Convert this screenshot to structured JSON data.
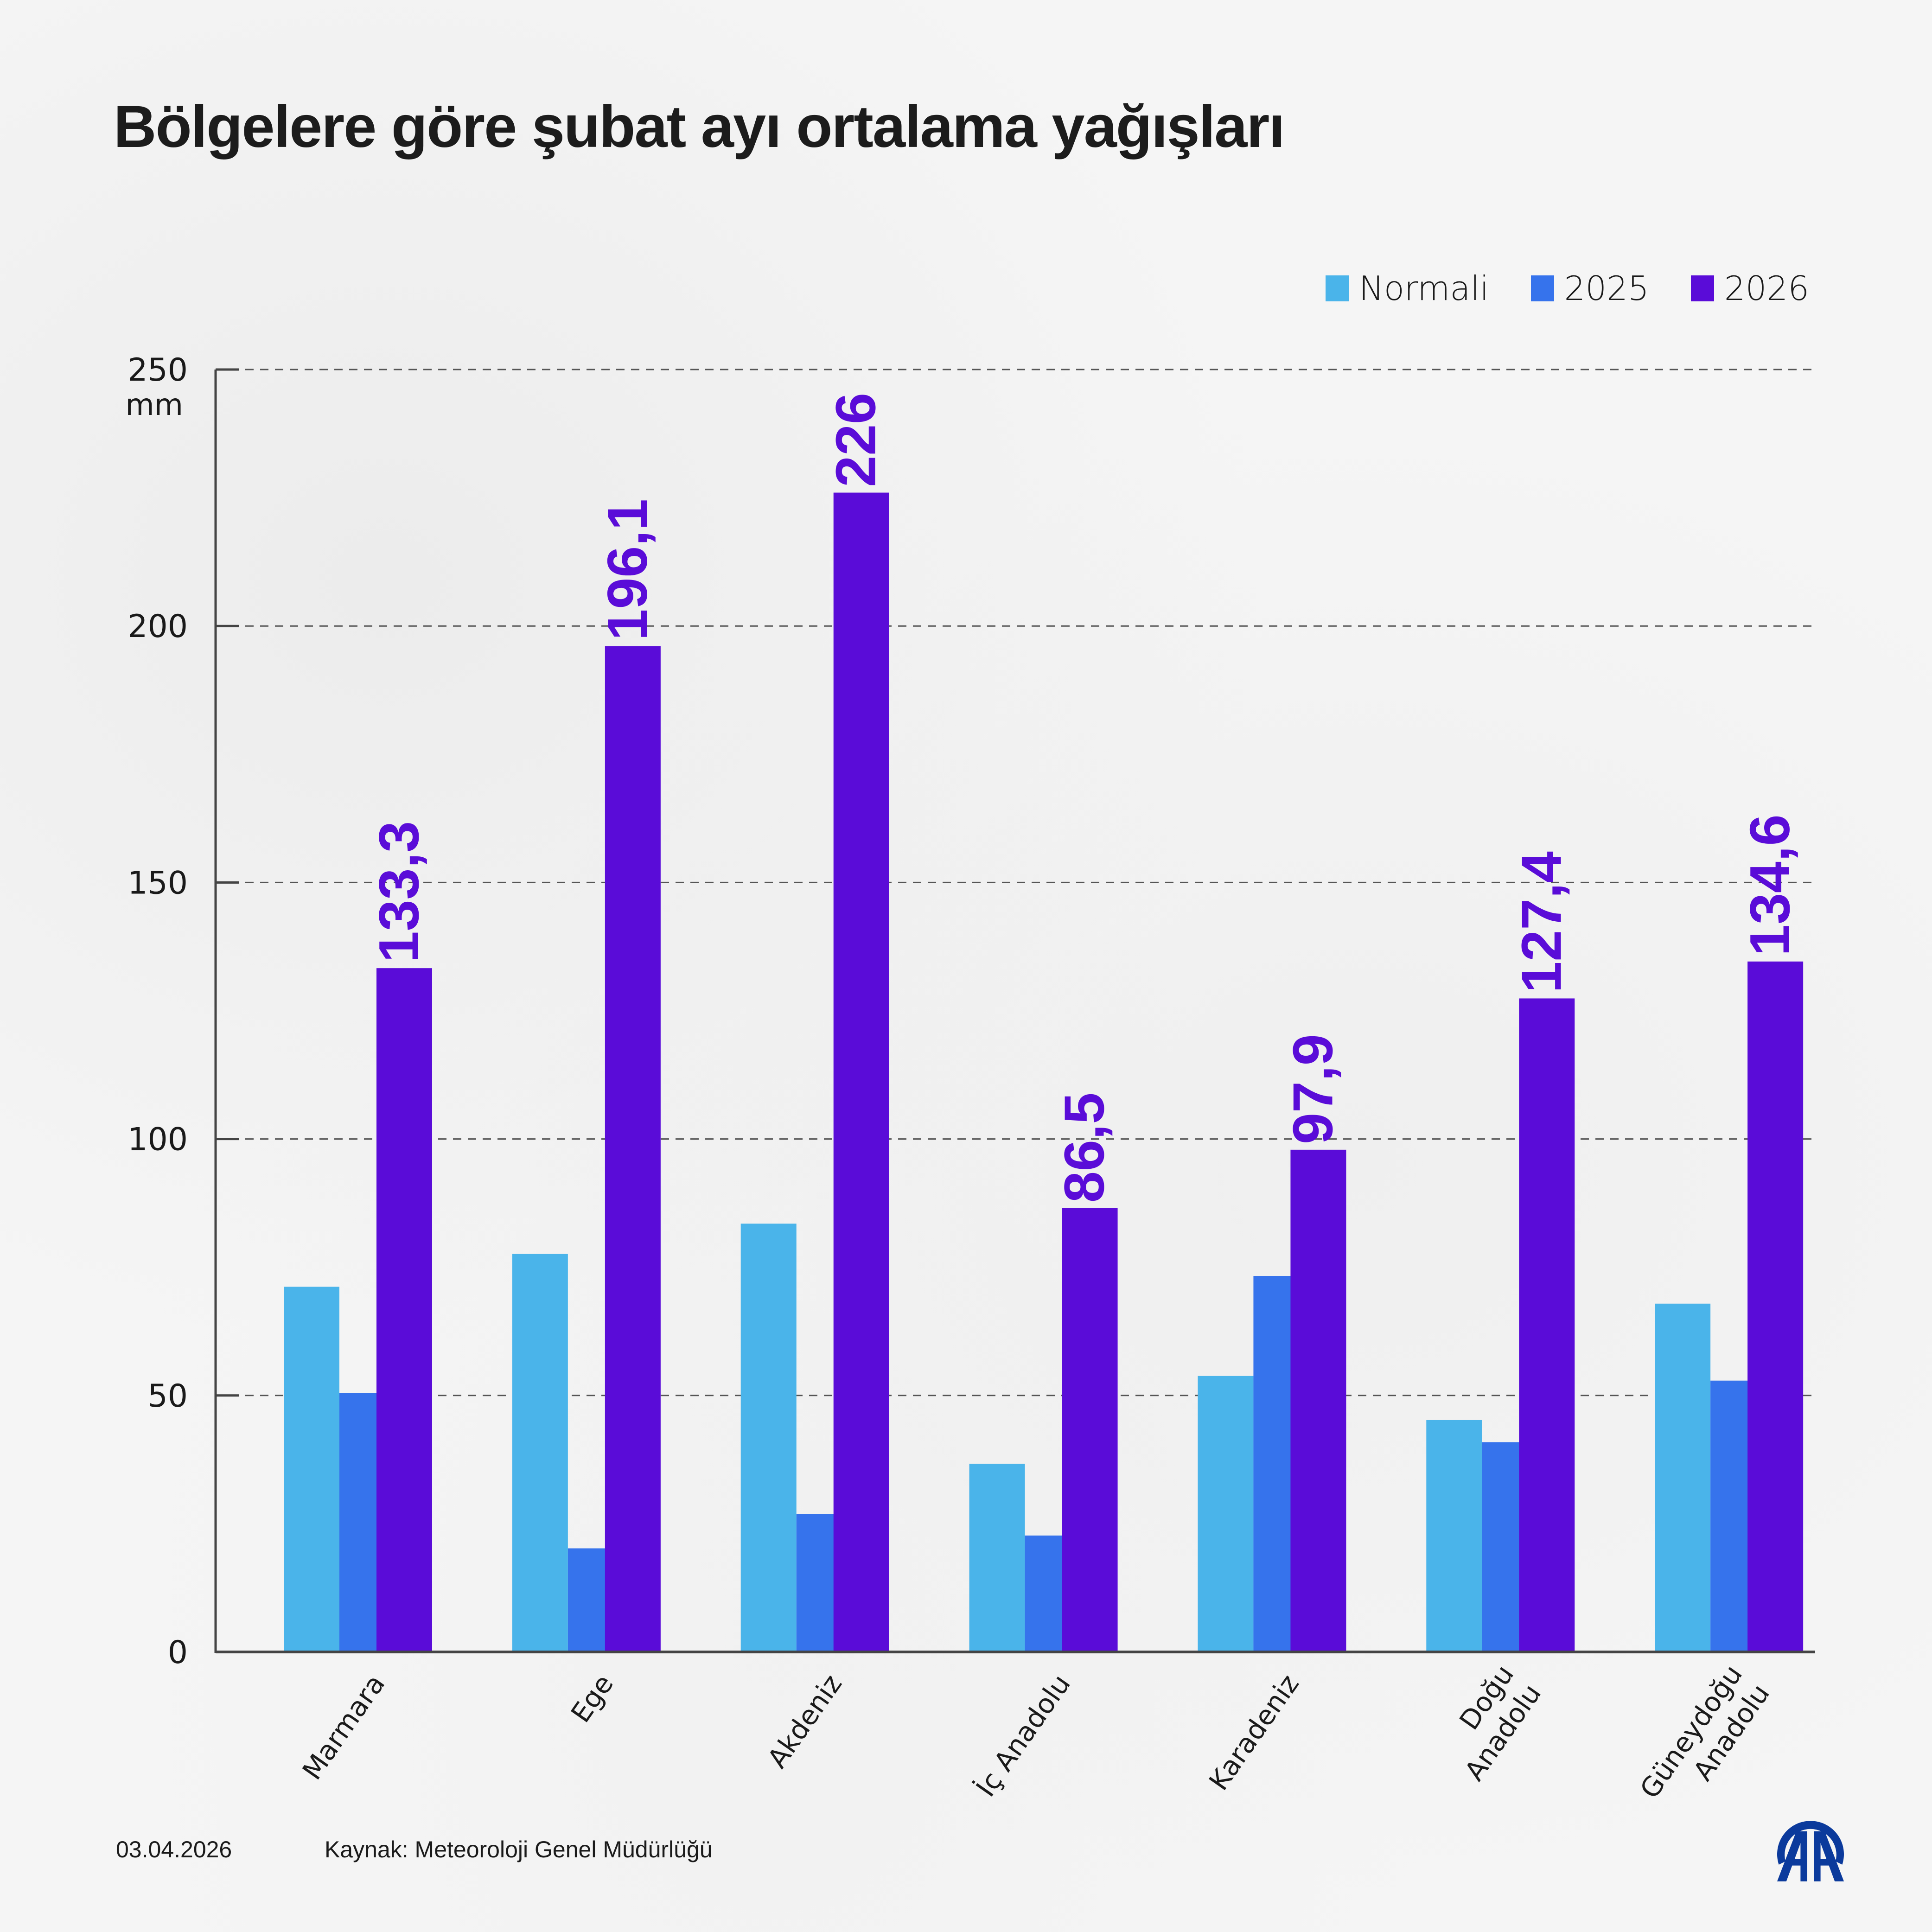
{
  "header": {
    "title": "Bölgelere göre şubat ayı ortalama yağışları"
  },
  "legend": [
    {
      "label": "Normali",
      "color": "#4ab4ea"
    },
    {
      "label": "2025",
      "color": "#3673ec"
    },
    {
      "label": "2026",
      "color": "#5a0cd8"
    }
  ],
  "footer": {
    "date": "03.04.2026",
    "source": "Kaynak: Meteoroloji Genel Müdürlüğü",
    "logo": "aa-logo-icon",
    "logo_color": "#0b3a9c"
  },
  "chart_data": {
    "type": "bar",
    "title": "Bölgelere göre şubat ayı ortalama yağışları",
    "xlabel": "",
    "ylabel": "mm",
    "ylim": [
      0,
      250
    ],
    "yticks": [
      0,
      50,
      100,
      150,
      200,
      250
    ],
    "grid": true,
    "legend_position": "top-right",
    "categories": [
      [
        "Marmara"
      ],
      [
        "Ege"
      ],
      [
        "Akdeniz"
      ],
      [
        "İç Anadolu"
      ],
      [
        "Karadeniz"
      ],
      [
        "Doğu",
        "Anadolu"
      ],
      [
        "Güneydoğu",
        "Anadolu"
      ]
    ],
    "series": [
      {
        "name": "Normali",
        "color": "#4ab4ea",
        "values": [
          71.2,
          77.6,
          83.5,
          36.7,
          53.8,
          45.2,
          67.9
        ],
        "labeled": false
      },
      {
        "name": "2025",
        "color": "#3673ec",
        "values": [
          50.5,
          20.2,
          26.9,
          22.7,
          73.3,
          40.9,
          52.9
        ],
        "labeled": false
      },
      {
        "name": "2026",
        "color": "#5a0cd8",
        "values": [
          133.3,
          196.1,
          226,
          86.5,
          97.9,
          127.4,
          134.6
        ],
        "labeled": true,
        "value_labels": [
          "133,3",
          "196,1",
          "226",
          "86,5",
          "97,9",
          "127,4",
          "134,6"
        ]
      }
    ]
  }
}
